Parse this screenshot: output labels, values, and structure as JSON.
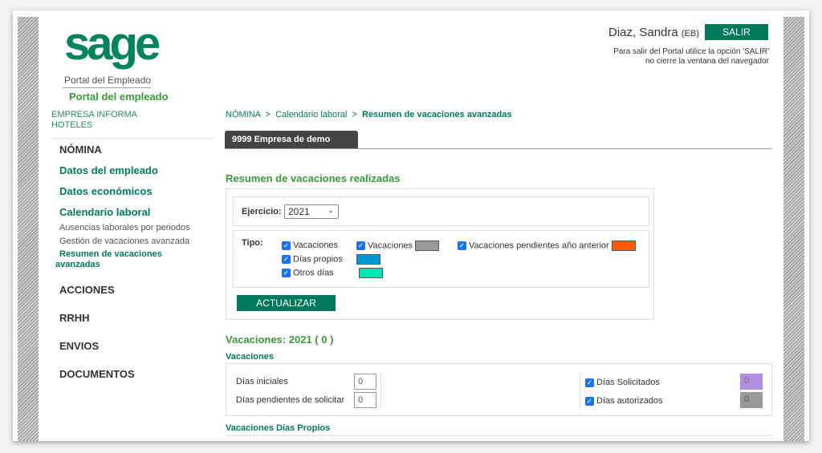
{
  "header": {
    "logo": "sage",
    "portal_title": "Portal del Empleado",
    "portal_subtitle": "Portal del empleado",
    "user_name": "Diaz, Sandra",
    "user_code": "(EB)",
    "logout": "SALIR",
    "logout_note_1": "Para salir del Portal utilice la opción 'SALIR'",
    "logout_note_2": "no cierre la ventana del navegador"
  },
  "sidebar": {
    "company_1": "EMPRESA INFORMA",
    "company_2": "HOTELES",
    "sections": [
      "NÓMINA",
      "ACCIONES",
      "RRHH",
      "ENVIOS",
      "DOCUMENTOS"
    ],
    "nomina_items": [
      "Datos del empleado",
      "Datos económicos",
      "Calendario laboral"
    ],
    "calendario_items": [
      "Ausencias laborales por periodos",
      "Gestión de vacaciones avanzada",
      "Resumen de vacaciones avanzadas"
    ]
  },
  "breadcrumb": [
    "NÓMINA",
    "Calendario laboral",
    "Resumen de vacaciones avanzadas"
  ],
  "tab": "9999 Empresa de demo",
  "main": {
    "title": "Resumen de vacaciones realizadas",
    "ejercicio_label": "Ejercicio:",
    "ejercicio_value": "2021",
    "tipo_label": "Tipo:",
    "tipos": [
      {
        "label": "Vacaciones",
        "checked": true
      },
      {
        "label": "Vacaciones",
        "checked": true,
        "color": "#999999"
      },
      {
        "label": "Vacaciones pendientes año anterior",
        "checked": true,
        "color": "#ff5a00"
      },
      {
        "label": "Días propios",
        "checked": true,
        "color": "#0099d8"
      },
      {
        "label": "Otros días",
        "checked": true,
        "color": "#00e5b4"
      }
    ],
    "update_button": "ACTUALIZAR",
    "summary_title": "Vacaciones: 2021 ( 0 )",
    "section1": "Vacaciones",
    "dias_iniciales_label": "Días iniciales",
    "dias_iniciales": "0",
    "dias_pendientes_label": "Días pendientes de solicitar",
    "dias_pendientes": "0",
    "solicitados_label": "Días Solicitados",
    "solicitados": "0",
    "solicitados_color": "#b38fe0",
    "autorizados_label": "Días autorizados",
    "autorizados": "0",
    "autorizados_color": "#999999",
    "section2": "Vacaciones Días Propios"
  }
}
